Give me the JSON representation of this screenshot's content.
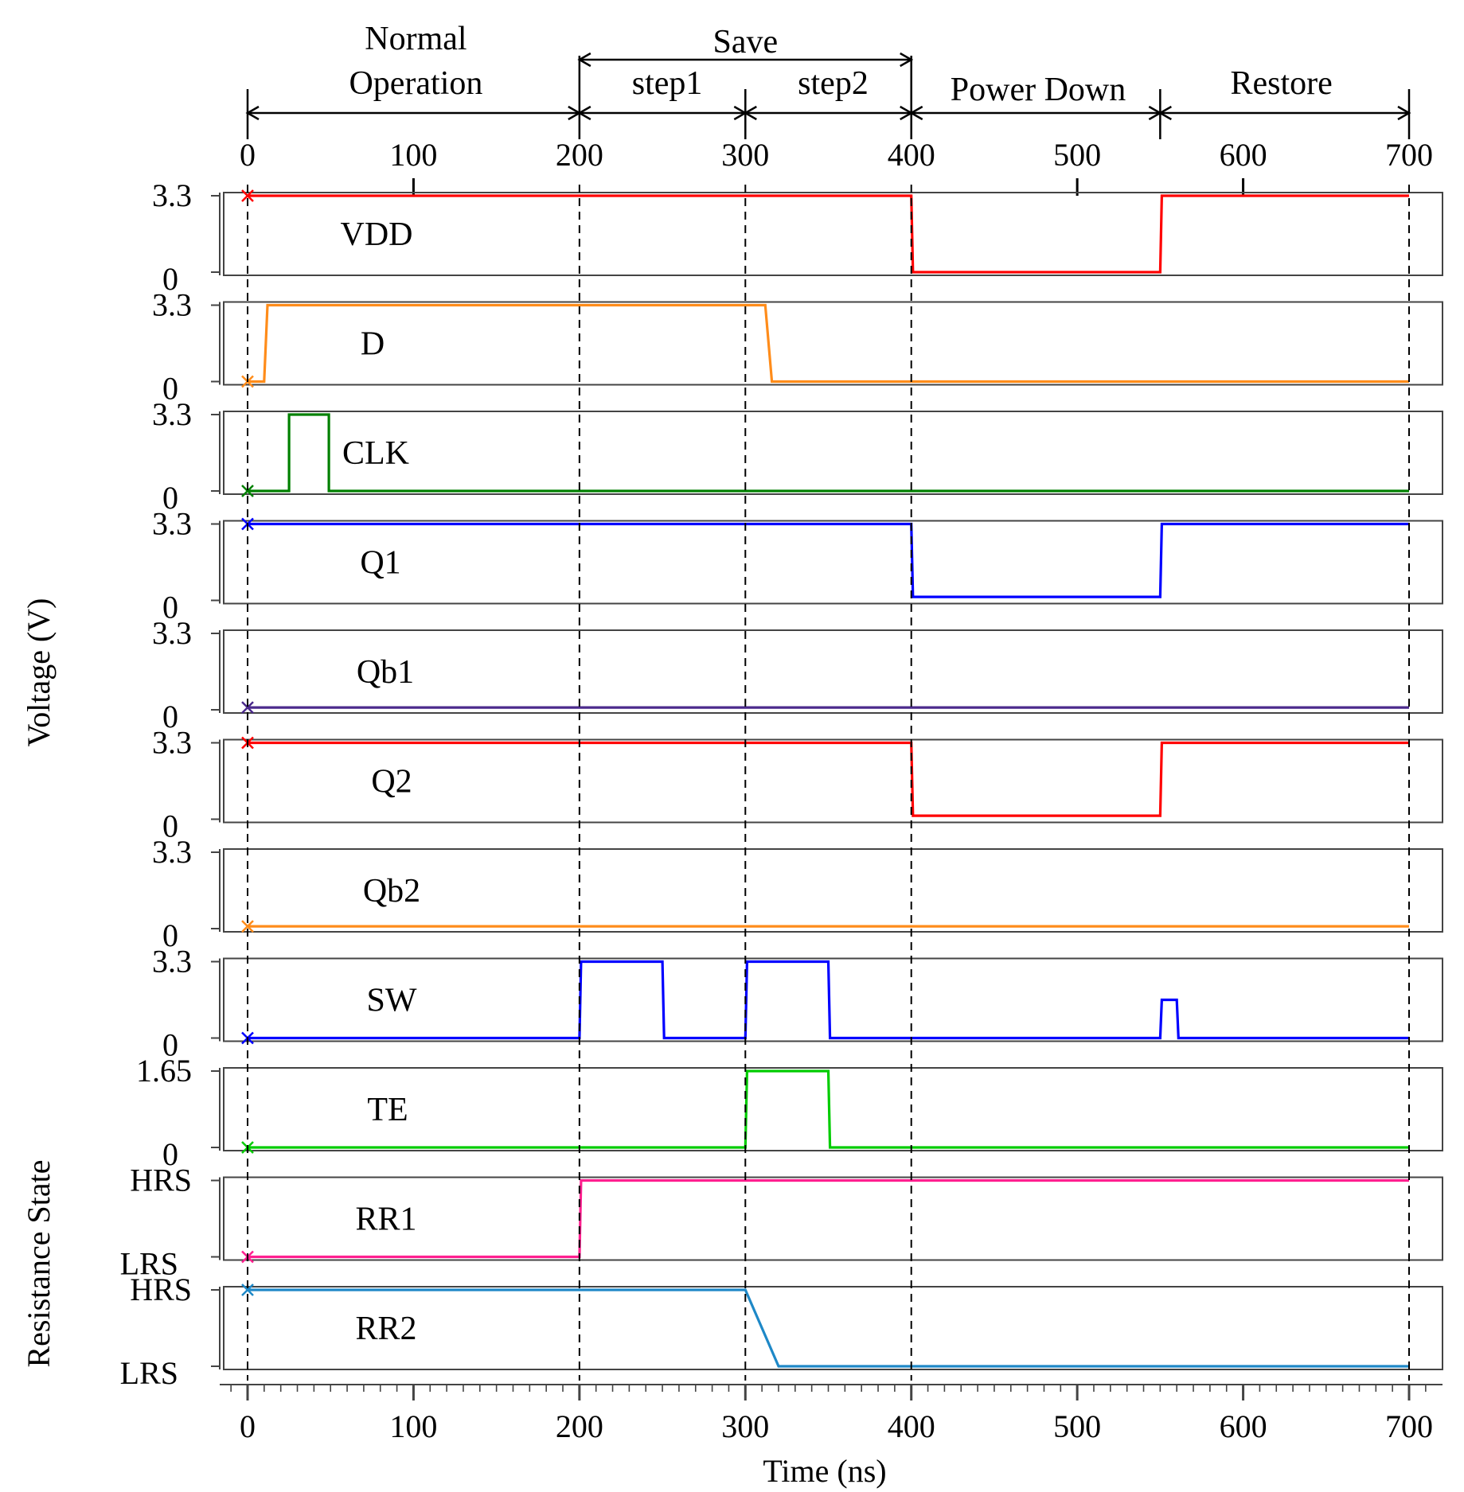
{
  "chart_data": {
    "type": "line",
    "title": "",
    "xlabel": "Time (ns)",
    "ylabel_voltage": "Voltage (V)",
    "ylabel_resistance": "Resistance State",
    "xlim": [
      0,
      700
    ],
    "x_ticks": [
      "0",
      "100",
      "200",
      "300",
      "400",
      "500",
      "600",
      "700"
    ],
    "phases": [
      {
        "label_lines": [
          "Normal",
          "Operation"
        ],
        "start": 0,
        "end": 200
      },
      {
        "label_lines": [
          "Save"
        ],
        "start": 200,
        "end": 400
      },
      {
        "label_lines": [
          "step1"
        ],
        "start": 200,
        "end": 300
      },
      {
        "label_lines": [
          "step2"
        ],
        "start": 300,
        "end": 400
      },
      {
        "label_lines": [
          "Power Down"
        ],
        "start": 400,
        "end": 550
      },
      {
        "label_lines": [
          "Restore"
        ],
        "start": 550,
        "end": 700
      }
    ],
    "guide_lines_x": [
      0,
      200,
      300,
      400,
      700
    ],
    "series": [
      {
        "name": "VDD",
        "color": "#ff0000",
        "y_ticks": [
          "3.3",
          "0"
        ],
        "ylim": [
          0,
          3.3
        ],
        "points": [
          [
            0,
            3.3
          ],
          [
            400,
            3.3
          ],
          [
            401,
            0
          ],
          [
            550,
            0
          ],
          [
            551,
            3.3
          ],
          [
            700,
            3.3
          ]
        ]
      },
      {
        "name": "D",
        "color": "#ff8c1a",
        "y_ticks": [
          "3.3",
          "0"
        ],
        "ylim": [
          0,
          3.3
        ],
        "points": [
          [
            0,
            0
          ],
          [
            10,
            0
          ],
          [
            12,
            3.3
          ],
          [
            312,
            3.3
          ],
          [
            316,
            0
          ],
          [
            700,
            0
          ]
        ]
      },
      {
        "name": "CLK",
        "color": "#008000",
        "y_ticks": [
          "3.3",
          "0"
        ],
        "ylim": [
          0,
          3.3
        ],
        "points": [
          [
            0,
            0
          ],
          [
            25,
            0
          ],
          [
            25,
            3.3
          ],
          [
            49,
            3.3
          ],
          [
            49,
            0
          ],
          [
            700,
            0
          ]
        ]
      },
      {
        "name": "Q1",
        "color": "#0000ff",
        "y_ticks": [
          "3.3",
          "0"
        ],
        "ylim": [
          0,
          3.3
        ],
        "points": [
          [
            0,
            3.3
          ],
          [
            400,
            3.3
          ],
          [
            401,
            0.15
          ],
          [
            550,
            0.15
          ],
          [
            551,
            3.3
          ],
          [
            700,
            3.3
          ]
        ]
      },
      {
        "name": "Qb1",
        "color": "#4b2a8c",
        "y_ticks": [
          "3.3",
          "0"
        ],
        "ylim": [
          0,
          3.3
        ],
        "points": [
          [
            0,
            0.1
          ],
          [
            700,
            0.1
          ]
        ]
      },
      {
        "name": "Q2",
        "color": "#ff0000",
        "y_ticks": [
          "3.3",
          "0"
        ],
        "ylim": [
          0,
          3.3
        ],
        "points": [
          [
            0,
            3.3
          ],
          [
            400,
            3.3
          ],
          [
            401,
            0.15
          ],
          [
            550,
            0.15
          ],
          [
            551,
            3.3
          ],
          [
            700,
            3.3
          ]
        ]
      },
      {
        "name": "Qb2",
        "color": "#ff8c1a",
        "y_ticks": [
          "3.3",
          "0"
        ],
        "ylim": [
          0,
          3.3
        ],
        "points": [
          [
            0,
            0.1
          ],
          [
            700,
            0.1
          ]
        ]
      },
      {
        "name": "SW",
        "color": "#0000ff",
        "y_ticks": [
          "3.3",
          "0"
        ],
        "ylim": [
          0,
          3.3
        ],
        "points": [
          [
            0,
            0
          ],
          [
            200,
            0
          ],
          [
            201,
            3.3
          ],
          [
            250,
            3.3
          ],
          [
            251,
            0
          ],
          [
            300,
            0
          ],
          [
            301,
            3.3
          ],
          [
            350,
            3.3
          ],
          [
            351,
            0
          ],
          [
            550,
            0
          ],
          [
            551,
            1.65
          ],
          [
            560,
            1.65
          ],
          [
            561,
            0
          ],
          [
            700,
            0
          ]
        ]
      },
      {
        "name": "TE",
        "color": "#00cc00",
        "y_ticks": [
          "1.65",
          "0"
        ],
        "ylim": [
          0,
          1.65
        ],
        "points": [
          [
            0,
            0
          ],
          [
            300,
            0
          ],
          [
            301,
            1.65
          ],
          [
            350,
            1.65
          ],
          [
            351,
            0
          ],
          [
            700,
            0
          ]
        ]
      },
      {
        "name": "RR1",
        "color": "#ff1f8f",
        "y_ticks": [
          "HRS",
          "LRS"
        ],
        "ylim": [
          0,
          1
        ],
        "points": [
          [
            0,
            0
          ],
          [
            200,
            0
          ],
          [
            201,
            1
          ],
          [
            700,
            1
          ]
        ]
      },
      {
        "name": "RR2",
        "color": "#1e88c7",
        "y_ticks": [
          "HRS",
          "LRS"
        ],
        "ylim": [
          0,
          1
        ],
        "points": [
          [
            0,
            1
          ],
          [
            300,
            1
          ],
          [
            320,
            0
          ],
          [
            700,
            0
          ]
        ]
      }
    ]
  }
}
